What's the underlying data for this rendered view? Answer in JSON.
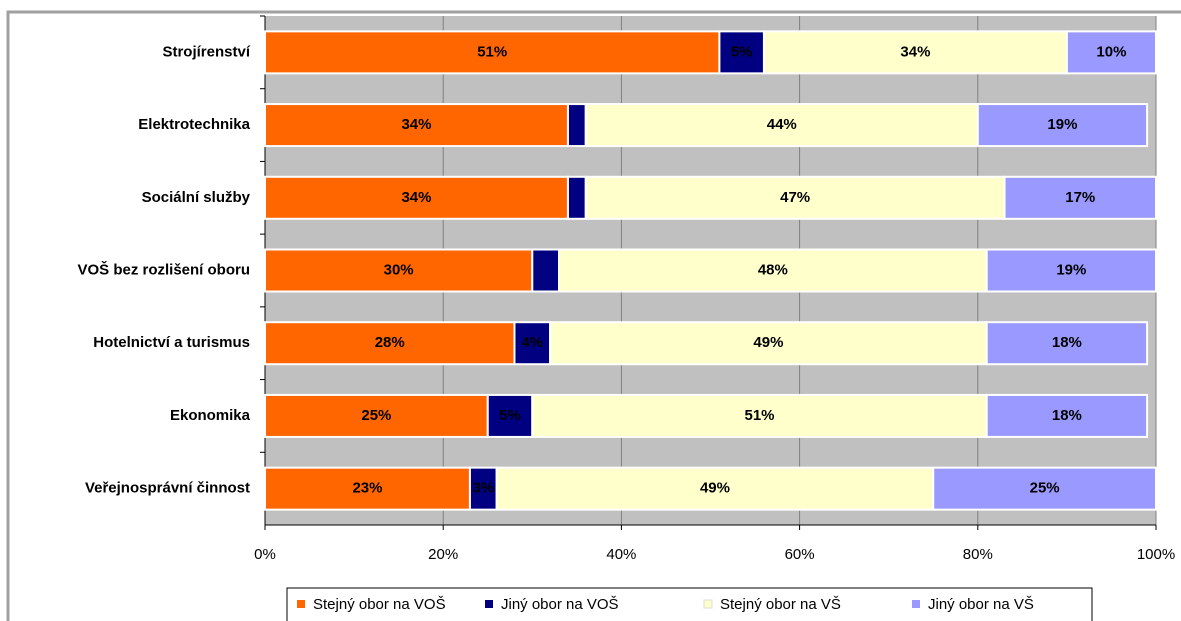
{
  "chart_data": {
    "type": "bar",
    "orientation": "horizontal",
    "stacked": true,
    "categories": [
      "Strojírenství",
      "Elektrotechnika",
      "Sociální služby",
      "VOŠ bez rozlišení oboru",
      "Hotelnictví a turismus",
      "Ekonomika",
      "Veřejnosprávní činnost"
    ],
    "series": [
      {
        "name": "Stejný obor na VOŠ",
        "color": "#ff6600",
        "values": [
          51,
          34,
          34,
          30,
          28,
          25,
          23
        ],
        "value_labels": [
          "51%",
          "34%",
          "34%",
          "30%",
          "28%",
          "25%",
          "23%"
        ]
      },
      {
        "name": "Jiný obor na VOŠ",
        "color": "#000080",
        "values": [
          5,
          2,
          2,
          3,
          4,
          5,
          3
        ],
        "value_labels": [
          "5%",
          null,
          null,
          null,
          "4%",
          "5%",
          "3%"
        ]
      },
      {
        "name": "Stejný obor na VŠ",
        "color": "#ffffcc",
        "values": [
          34,
          44,
          47,
          48,
          49,
          51,
          49
        ],
        "value_labels": [
          "34%",
          "44%",
          "47%",
          "48%",
          "49%",
          "51%",
          "49%"
        ]
      },
      {
        "name": "Jiný obor na VŠ",
        "color": "#9999ff",
        "values": [
          10,
          19,
          17,
          19,
          18,
          18,
          25
        ],
        "value_labels": [
          "10%",
          "19%",
          "17%",
          "19%",
          "18%",
          "18%",
          "25%"
        ]
      }
    ],
    "xlim": [
      0,
      100
    ],
    "xticks": [
      {
        "value": 0,
        "label": "0%"
      },
      {
        "value": 20,
        "label": "20%"
      },
      {
        "value": 40,
        "label": "40%"
      },
      {
        "value": 60,
        "label": "60%"
      },
      {
        "value": 80,
        "label": "80%"
      },
      {
        "value": 100,
        "label": "100%"
      }
    ],
    "grid": true,
    "legend": "bottom"
  }
}
